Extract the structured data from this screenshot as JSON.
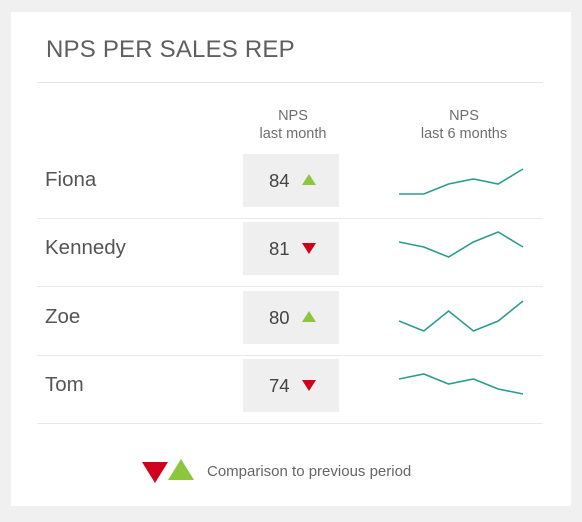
{
  "widget": {
    "title": "NPS PER SALES REP",
    "col_nps_line1": "NPS",
    "col_nps_line2": "last month",
    "col_trend_line1": "NPS",
    "col_trend_line2": "last 6 months",
    "legend_text": "Comparison to previous period"
  },
  "colors": {
    "up": "#8cc63f",
    "down": "#d0021b",
    "sparkline": "#2a9d8f"
  },
  "reps": [
    {
      "name": "Fiona",
      "nps": "84",
      "direction": "up",
      "icon": "triangle-up-icon",
      "trend": [
        2,
        2,
        4,
        5,
        4,
        7
      ]
    },
    {
      "name": "Kennedy",
      "nps": "81",
      "direction": "down",
      "icon": "triangle-down-icon",
      "trend": [
        6,
        5,
        3,
        6,
        8,
        5
      ]
    },
    {
      "name": "Zoe",
      "nps": "80",
      "direction": "up",
      "icon": "triangle-up-icon",
      "trend": [
        4,
        2,
        6,
        2,
        4,
        8
      ]
    },
    {
      "name": "Tom",
      "nps": "74",
      "direction": "down",
      "icon": "triangle-down-icon",
      "trend": [
        6,
        7,
        5,
        6,
        4,
        3
      ]
    }
  ]
}
